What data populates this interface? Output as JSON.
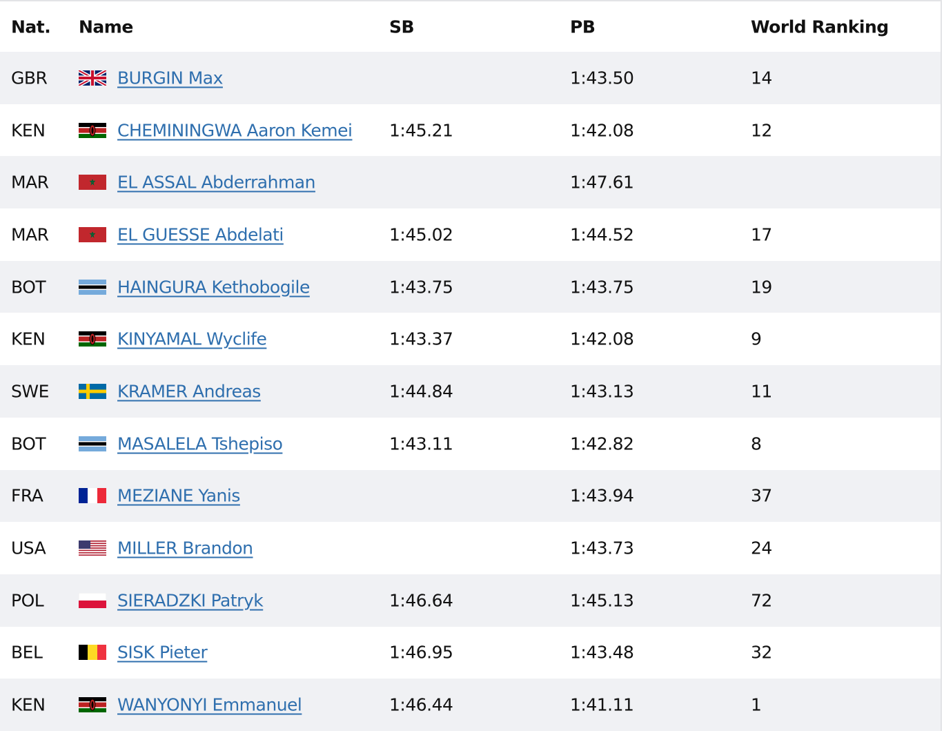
{
  "table": {
    "headers": [
      "Nat.",
      "Name",
      "SB",
      "PB",
      "World Ranking"
    ],
    "rows": [
      [
        "GBR",
        "BURGIN Max",
        null,
        "1:43.50",
        "14"
      ],
      [
        "KEN",
        "CHEMININGWA Aaron Kemei",
        "1:45.21",
        "1:42.08",
        "12"
      ],
      [
        "MAR",
        "EL ASSAL Abderrahman",
        null,
        "1:47.61",
        null
      ],
      [
        "MAR",
        "EL GUESSE Abdelati",
        "1:45.02",
        "1:44.52",
        "17"
      ],
      [
        "BOT",
        "HAINGURA Kethobogile",
        "1:43.75",
        "1:43.75",
        "19"
      ],
      [
        "KEN",
        "KINYAMAL Wyclife",
        "1:43.37",
        "1:42.08",
        "9"
      ],
      [
        "SWE",
        "KRAMER Andreas",
        "1:44.84",
        "1:43.13",
        "11"
      ],
      [
        "BOT",
        "MASALELA Tshepiso",
        "1:43.11",
        "1:42.82",
        "8"
      ],
      [
        "FRA",
        "MEZIANE Yanis",
        null,
        "1:43.94",
        "37"
      ],
      [
        "USA",
        "MILLER Brandon",
        null,
        "1:43.73",
        "24"
      ],
      [
        "POL",
        "SIERADZKI Patryk",
        "1:46.64",
        "1:45.13",
        "72"
      ],
      [
        "BEL",
        "SISK Pieter",
        "1:46.95",
        "1:43.48",
        "32"
      ],
      [
        "KEN",
        "WANYONYI Emmanuel",
        "1:46.44",
        "1:41.11",
        "1"
      ]
    ]
  }
}
